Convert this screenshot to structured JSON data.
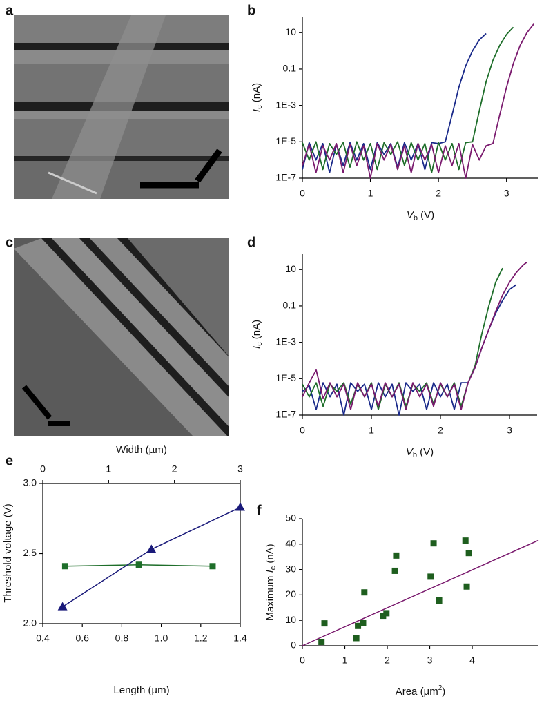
{
  "image_panels": [
    {
      "panel_label": "a"
    },
    {
      "panel_label": "c"
    }
  ],
  "chart_data": [
    {
      "type": "line",
      "panel_label": "b",
      "log_y": true,
      "xlabel": [
        "V",
        "b",
        " (V)"
      ],
      "ylabel": [
        "I",
        "c",
        " (nA)"
      ],
      "xlim": [
        0,
        3.47
      ],
      "xticks": [
        0,
        1,
        2,
        3
      ],
      "ylim": [
        1e-07,
        70
      ],
      "yticks": [
        {
          "value": 1e-07,
          "label": "1E-7"
        },
        {
          "value": 1e-05,
          "label": "1E-5"
        },
        {
          "value": 0.001,
          "label": "1E-3"
        },
        0.1,
        10
      ],
      "series": [
        {
          "color": "#1a2a8a",
          "x": [
            0,
            0.1,
            0.2,
            0.3,
            0.4,
            0.5,
            0.6,
            0.7,
            0.8,
            0.9,
            1,
            1.1,
            1.2,
            1.3,
            1.4,
            1.5,
            1.6,
            1.7,
            1.8,
            1.9,
            2,
            2.1,
            2.2,
            2.3,
            2.4,
            2.5,
            2.6,
            2.7
          ],
          "values": [
            3e-07,
            9e-06,
            1e-06,
            8e-06,
            2e-07,
            7e-06,
            5e-07,
            9e-06,
            1e-06,
            8e-06,
            3e-07,
            9e-06,
            2e-06,
            8e-06,
            4e-07,
            9e-06,
            1e-06,
            8e-06,
            3e-07,
            9e-06,
            8e-06,
            1e-05,
            0.0003,
            0.01,
            0.15,
            1,
            4,
            9
          ]
        },
        {
          "color": "#1e6e2a",
          "x": [
            0,
            0.1,
            0.2,
            0.3,
            0.4,
            0.5,
            0.6,
            0.7,
            0.8,
            0.9,
            1,
            1.1,
            1.2,
            1.3,
            1.4,
            1.5,
            1.6,
            1.7,
            1.8,
            1.9,
            2,
            2.1,
            2.2,
            2.3,
            2.4,
            2.5,
            2.6,
            2.7,
            2.8,
            2.9,
            3,
            3.1
          ],
          "values": [
            9e-06,
            1e-06,
            1e-05,
            3e-07,
            8e-06,
            2e-06,
            9e-06,
            4e-07,
            1e-05,
            1e-06,
            8e-06,
            3e-07,
            9e-06,
            2e-06,
            1e-05,
            5e-07,
            9e-06,
            1e-06,
            8e-06,
            2e-07,
            9e-06,
            1e-06,
            8e-06,
            3e-07,
            9e-06,
            1e-05,
            0.0005,
            0.02,
            0.3,
            2,
            8,
            20
          ]
        },
        {
          "color": "#7a1a6e",
          "x": [
            0,
            0.1,
            0.2,
            0.3,
            0.4,
            0.5,
            0.6,
            0.7,
            0.8,
            0.9,
            1,
            1.1,
            1.2,
            1.3,
            1.4,
            1.5,
            1.6,
            1.7,
            1.8,
            1.9,
            2,
            2.1,
            2.2,
            2.3,
            2.4,
            2.5,
            2.6,
            2.7,
            2.8,
            2.9,
            3,
            3.1,
            3.2,
            3.3,
            3.4
          ],
          "values": [
            5e-07,
            7e-06,
            2e-07,
            6e-06,
            1e-06,
            8e-06,
            2e-07,
            7e-06,
            5e-07,
            6e-06,
            1e-07,
            8e-06,
            1e-06,
            7e-06,
            3e-07,
            6e-06,
            2e-07,
            8e-06,
            1e-06,
            7e-06,
            2e-07,
            6e-06,
            5e-07,
            8e-06,
            1e-07,
            7e-06,
            1e-06,
            6e-06,
            8e-06,
            0.0003,
            0.01,
            0.2,
            2,
            10,
            30
          ]
        }
      ]
    },
    {
      "type": "line",
      "panel_label": "d",
      "log_y": true,
      "xlabel": [
        "V",
        "b",
        " (V)"
      ],
      "ylabel": [
        "I",
        "c",
        " (nA)"
      ],
      "xlim": [
        0,
        3.4
      ],
      "xticks": [
        0,
        1,
        2,
        3
      ],
      "ylim": [
        1e-07,
        70
      ],
      "yticks": [
        {
          "value": 1e-07,
          "label": "1E-7"
        },
        {
          "value": 1e-05,
          "label": "1E-5"
        },
        {
          "value": 0.001,
          "label": "1E-3"
        },
        0.1,
        10
      ],
      "series": [
        {
          "color": "#1a2a8a",
          "x": [
            0,
            0.1,
            0.2,
            0.3,
            0.4,
            0.5,
            0.6,
            0.7,
            0.8,
            0.9,
            1,
            1.1,
            1.2,
            1.3,
            1.4,
            1.5,
            1.6,
            1.7,
            1.8,
            1.9,
            2,
            2.1,
            2.2,
            2.3,
            2.4,
            2.5,
            2.6,
            2.7,
            2.8,
            2.9,
            3,
            3.1
          ],
          "values": [
            2e-06,
            4e-06,
            2e-07,
            6e-06,
            1e-06,
            5e-06,
            1e-07,
            6e-06,
            2e-06,
            5e-06,
            2e-07,
            6e-06,
            1e-06,
            5e-06,
            1e-07,
            6e-06,
            2e-06,
            5e-06,
            2e-07,
            6e-06,
            1e-06,
            5e-06,
            2e-07,
            6e-06,
            6e-06,
            4e-05,
            0.0005,
            0.005,
            0.04,
            0.2,
            0.8,
            1.5
          ]
        },
        {
          "color": "#1e6e2a",
          "x": [
            0,
            0.1,
            0.2,
            0.3,
            0.4,
            0.5,
            0.6,
            0.7,
            0.8,
            0.9,
            1,
            1.1,
            1.2,
            1.3,
            1.4,
            1.5,
            1.6,
            1.7,
            1.8,
            1.9,
            2,
            2.1,
            2.2,
            2.3,
            2.4,
            2.5,
            2.6,
            2.7,
            2.8,
            2.9
          ],
          "values": [
            5e-06,
            1e-06,
            6e-06,
            3e-07,
            5e-06,
            2e-06,
            6e-06,
            4e-07,
            5e-06,
            1e-06,
            6e-06,
            2e-07,
            5e-06,
            1e-06,
            6e-06,
            3e-07,
            5e-06,
            2e-06,
            6e-06,
            4e-07,
            5e-06,
            1e-06,
            6e-06,
            3e-07,
            6e-06,
            5e-05,
            0.003,
            0.1,
            2,
            12
          ]
        },
        {
          "color": "#7a1a6e",
          "x": [
            0,
            0.1,
            0.2,
            0.3,
            0.4,
            0.5,
            0.6,
            0.7,
            0.8,
            0.9,
            1,
            1.1,
            1.2,
            1.3,
            1.4,
            1.5,
            1.6,
            1.7,
            1.8,
            1.9,
            2,
            2.1,
            2.2,
            2.3,
            2.4,
            2.5,
            2.6,
            2.7,
            2.8,
            2.9,
            3,
            3.1,
            3.2,
            3.25
          ],
          "values": [
            1e-06,
            6e-06,
            3e-05,
            8e-07,
            6e-06,
            1e-06,
            5e-06,
            2e-07,
            6e-06,
            1e-06,
            5e-06,
            3e-07,
            6e-06,
            1e-06,
            5e-06,
            2e-07,
            6e-06,
            1e-06,
            5e-06,
            3e-07,
            6e-06,
            1e-06,
            5e-06,
            2e-07,
            6e-06,
            4e-05,
            0.0005,
            0.005,
            0.05,
            0.4,
            2,
            7,
            18,
            25
          ]
        }
      ]
    },
    {
      "type": "line",
      "panel_label": "e",
      "box": true,
      "markers": true,
      "xlabel": "Length (µm)",
      "x2label": "Width (µm)",
      "ylabel": "Threshold voltage (V)",
      "xlim": [
        0.4,
        1.4
      ],
      "xticks": [
        0.4,
        0.6,
        0.8,
        {
          "value": 1,
          "label": "1.0"
        },
        1.2,
        1.4
      ],
      "x2lim": [
        0,
        3
      ],
      "x2ticks": [
        0,
        1,
        2,
        3
      ],
      "ylim": [
        2,
        3
      ],
      "yticks": [
        {
          "value": 2,
          "label": "2.0"
        },
        2.5,
        {
          "value": 3,
          "label": "3.0"
        }
      ],
      "series": [
        {
          "color": "#1e6e2a",
          "marker": "square",
          "axis": "x2",
          "x": [
            0.34,
            1.46,
            2.58
          ],
          "values": [
            2.41,
            2.42,
            2.41
          ]
        },
        {
          "color": "#1a1a7a",
          "marker": "triangle",
          "x": [
            0.5,
            0.95,
            1.4
          ],
          "values": [
            2.12,
            2.53,
            2.83
          ]
        }
      ]
    },
    {
      "type": "scatter",
      "panel_label": "f",
      "xlabel": [
        "Area (µm",
        "2",
        ")"
      ],
      "ylabel": [
        "Maximum ",
        "I",
        "c",
        " (nA)"
      ],
      "xlim": [
        0,
        5.56
      ],
      "xticks": [
        0,
        1,
        2,
        3,
        4
      ],
      "ylim": [
        0,
        50
      ],
      "yticks": [
        0,
        10,
        20,
        30,
        40,
        50
      ],
      "color": "#1e5e1e",
      "x": [
        0.45,
        0.52,
        1.27,
        1.31,
        1.43,
        1.46,
        1.9,
        1.98,
        2.18,
        2.21,
        3.02,
        3.09,
        3.22,
        3.84,
        3.87,
        3.92
      ],
      "values": [
        1.5,
        8.8,
        3,
        7.8,
        9,
        21,
        11.8,
        12.8,
        29.5,
        35.5,
        27.2,
        40.3,
        17.8,
        41.4,
        23.3,
        36.5
      ],
      "fit": {
        "color": "#7a1a6e",
        "x": [
          0,
          5.56
        ],
        "values": [
          0,
          41.5
        ]
      }
    }
  ]
}
